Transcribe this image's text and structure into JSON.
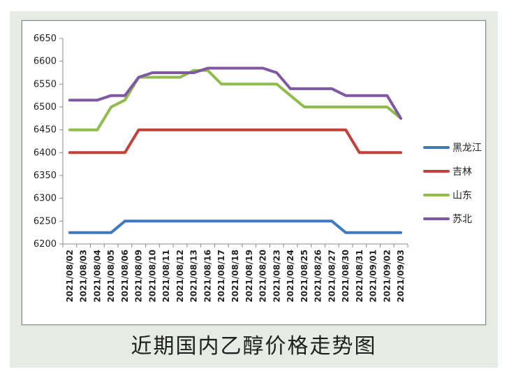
{
  "chart_data": {
    "type": "line",
    "title": "近期国内乙醇价格走势图",
    "categories": [
      "2021/08/02",
      "2021/08/03",
      "2021/08/04",
      "2021/08/05",
      "2021/08/06",
      "2021/08/09",
      "2021/08/10",
      "2021/08/11",
      "2021/08/12",
      "2021/08/13",
      "2021/08/16",
      "2021/08/17",
      "2021/08/18",
      "2021/08/19",
      "2021/08/20",
      "2021/08/23",
      "2021/08/24",
      "2021/08/25",
      "2021/08/26",
      "2021/08/27",
      "2021/08/30",
      "2021/08/31",
      "2021/09/01",
      "2021/09/02",
      "2021/09/03"
    ],
    "ylim": [
      6200,
      6650
    ],
    "yticks": [
      6200,
      6250,
      6300,
      6350,
      6400,
      6450,
      6500,
      6550,
      6600,
      6650
    ],
    "grid": false,
    "legend_position": "right",
    "series": [
      {
        "name": "黑龙江",
        "color": "#3d78c0",
        "values": [
          6225,
          6225,
          6225,
          6225,
          6250,
          6250,
          6250,
          6250,
          6250,
          6250,
          6250,
          6250,
          6250,
          6250,
          6250,
          6250,
          6250,
          6250,
          6250,
          6250,
          6225,
          6225,
          6225,
          6225,
          6225
        ]
      },
      {
        "name": "吉林",
        "color": "#c0423a",
        "values": [
          6400,
          6400,
          6400,
          6400,
          6400,
          6450,
          6450,
          6450,
          6450,
          6450,
          6450,
          6450,
          6450,
          6450,
          6450,
          6450,
          6450,
          6450,
          6450,
          6450,
          6450,
          6400,
          6400,
          6400,
          6400
        ]
      },
      {
        "name": "山东",
        "color": "#8fbc4a",
        "values": [
          6450,
          6450,
          6450,
          6500,
          6515,
          6565,
          6565,
          6565,
          6565,
          6580,
          6580,
          6550,
          6550,
          6550,
          6550,
          6550,
          6525,
          6500,
          6500,
          6500,
          6500,
          6500,
          6500,
          6500,
          6475
        ]
      },
      {
        "name": "苏北",
        "color": "#7f57a3",
        "values": [
          6515,
          6515,
          6515,
          6525,
          6525,
          6565,
          6575,
          6575,
          6575,
          6575,
          6585,
          6585,
          6585,
          6585,
          6585,
          6575,
          6540,
          6540,
          6540,
          6540,
          6525,
          6525,
          6525,
          6525,
          6475
        ]
      }
    ]
  }
}
